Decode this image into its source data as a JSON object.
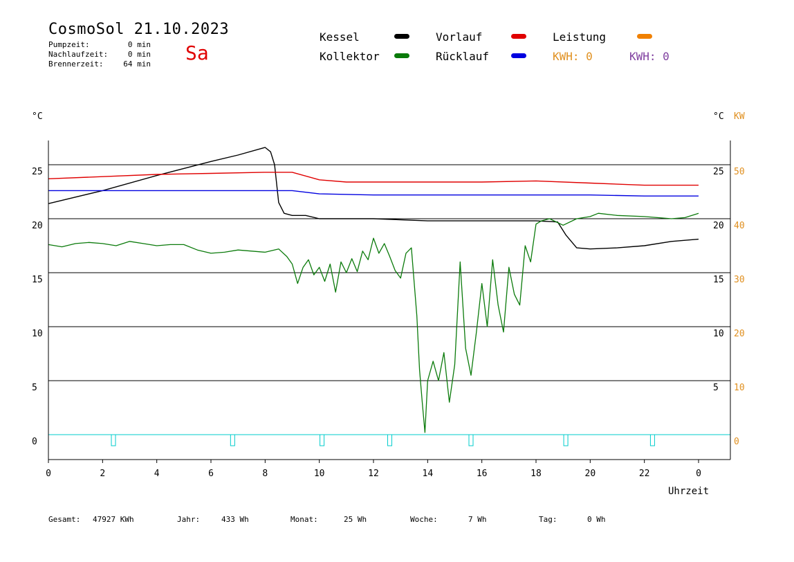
{
  "header": {
    "title": "CosmoSol 21.10.2023",
    "weekday": "Sa",
    "stats": [
      {
        "label": "Pumpzeit:",
        "value": "0 min"
      },
      {
        "label": "Nachlaufzeit:",
        "value": "0 min"
      },
      {
        "label": "Brennerzeit:",
        "value": "64 min"
      }
    ]
  },
  "legend": {
    "kessel": {
      "label": "Kessel",
      "color": "#000000"
    },
    "kollektor": {
      "label": "Kollektor",
      "color": "#0a7a0a"
    },
    "vorlauf": {
      "label": "Vorlauf",
      "color": "#e00000"
    },
    "ruecklauf": {
      "label": "Rücklauf",
      "color": "#0000e0"
    },
    "leistung": {
      "label": "Leistung",
      "color": "#f08000"
    },
    "kwh_orange": "KWH: 0",
    "kwh_purple": "KWH: 0",
    "kwh_orange_color": "#e09020",
    "kwh_purple_color": "#8040a0"
  },
  "axes": {
    "left_unit": "°C",
    "right_unit": "°C",
    "right_unit2": "KW",
    "x_label": "Uhrzeit"
  },
  "footer": [
    {
      "label": "Gesamt:",
      "value": "47927 KWh"
    },
    {
      "label": "Jahr:",
      "value": "433 Wh"
    },
    {
      "label": "Monat:",
      "value": "25 Wh"
    },
    {
      "label": "Woche:",
      "value": "7 Wh"
    },
    {
      "label": "Tag:",
      "value": "0 Wh"
    }
  ],
  "chart_data": {
    "type": "line",
    "x_ticks": [
      "0",
      "2",
      "4",
      "6",
      "8",
      "10",
      "12",
      "14",
      "16",
      "18",
      "20",
      "22",
      "0"
    ],
    "xlim": [
      0,
      24
    ],
    "left_ticks": [
      "0",
      "5",
      "10",
      "15",
      "20",
      "25"
    ],
    "right_ticks_black": [
      "5",
      "10",
      "15",
      "20",
      "25"
    ],
    "right_ticks_orange": [
      "0",
      "10",
      "20",
      "30",
      "40",
      "50"
    ],
    "ylim": [
      -2,
      27
    ],
    "grid": true,
    "series": [
      {
        "name": "Kessel",
        "color": "#000000",
        "points": [
          [
            0,
            21.4
          ],
          [
            2,
            22.6
          ],
          [
            4,
            24.0
          ],
          [
            6,
            25.3
          ],
          [
            7,
            25.9
          ],
          [
            8,
            26.6
          ],
          [
            8.2,
            26.2
          ],
          [
            8.35,
            25.0
          ],
          [
            8.5,
            21.5
          ],
          [
            8.7,
            20.5
          ],
          [
            9,
            20.3
          ],
          [
            9.5,
            20.3
          ],
          [
            10,
            20.0
          ],
          [
            12,
            20.0
          ],
          [
            14,
            19.8
          ],
          [
            16,
            19.8
          ],
          [
            18,
            19.8
          ],
          [
            18.8,
            19.7
          ],
          [
            19.1,
            18.5
          ],
          [
            19.5,
            17.3
          ],
          [
            20,
            17.2
          ],
          [
            21,
            17.3
          ],
          [
            22,
            17.5
          ],
          [
            23,
            17.9
          ],
          [
            24,
            18.1
          ]
        ]
      },
      {
        "name": "Vorlauf",
        "color": "#e00000",
        "points": [
          [
            0,
            23.7
          ],
          [
            2,
            23.9
          ],
          [
            4,
            24.1
          ],
          [
            6,
            24.2
          ],
          [
            8,
            24.3
          ],
          [
            9,
            24.3
          ],
          [
            10,
            23.6
          ],
          [
            11,
            23.4
          ],
          [
            14,
            23.4
          ],
          [
            16,
            23.4
          ],
          [
            18,
            23.5
          ],
          [
            20,
            23.3
          ],
          [
            22,
            23.1
          ],
          [
            24,
            23.1
          ]
        ]
      },
      {
        "name": "Rücklauf",
        "color": "#0000e0",
        "points": [
          [
            0,
            22.6
          ],
          [
            4,
            22.6
          ],
          [
            8,
            22.6
          ],
          [
            9,
            22.6
          ],
          [
            10,
            22.3
          ],
          [
            12,
            22.2
          ],
          [
            14,
            22.2
          ],
          [
            16,
            22.2
          ],
          [
            18,
            22.2
          ],
          [
            20,
            22.2
          ],
          [
            22,
            22.1
          ],
          [
            24,
            22.1
          ]
        ]
      },
      {
        "name": "Kollektor",
        "color": "#0a7a0a",
        "points": [
          [
            0,
            17.6
          ],
          [
            0.5,
            17.4
          ],
          [
            1,
            17.7
          ],
          [
            1.5,
            17.8
          ],
          [
            2,
            17.7
          ],
          [
            2.5,
            17.5
          ],
          [
            3,
            17.9
          ],
          [
            3.5,
            17.7
          ],
          [
            4,
            17.5
          ],
          [
            4.5,
            17.6
          ],
          [
            5,
            17.6
          ],
          [
            5.5,
            17.1
          ],
          [
            6,
            16.8
          ],
          [
            6.5,
            16.9
          ],
          [
            7,
            17.1
          ],
          [
            7.5,
            17.0
          ],
          [
            8,
            16.9
          ],
          [
            8.5,
            17.2
          ],
          [
            8.8,
            16.5
          ],
          [
            9,
            15.8
          ],
          [
            9.2,
            14.0
          ],
          [
            9.4,
            15.5
          ],
          [
            9.6,
            16.2
          ],
          [
            9.8,
            14.8
          ],
          [
            10,
            15.5
          ],
          [
            10.2,
            14.2
          ],
          [
            10.4,
            15.8
          ],
          [
            10.6,
            13.2
          ],
          [
            10.8,
            16.0
          ],
          [
            11,
            15.0
          ],
          [
            11.2,
            16.3
          ],
          [
            11.4,
            15.1
          ],
          [
            11.6,
            17.0
          ],
          [
            11.8,
            16.2
          ],
          [
            12,
            18.2
          ],
          [
            12.2,
            16.8
          ],
          [
            12.4,
            17.7
          ],
          [
            12.6,
            16.5
          ],
          [
            12.8,
            15.2
          ],
          [
            13,
            14.5
          ],
          [
            13.2,
            16.8
          ],
          [
            13.4,
            17.3
          ],
          [
            13.6,
            11.0
          ],
          [
            13.7,
            6.0
          ],
          [
            13.8,
            3.0
          ],
          [
            13.9,
            0.2
          ],
          [
            14,
            5.0
          ],
          [
            14.2,
            6.8
          ],
          [
            14.4,
            5.0
          ],
          [
            14.6,
            7.6
          ],
          [
            14.8,
            3.0
          ],
          [
            15,
            6.5
          ],
          [
            15.2,
            16.0
          ],
          [
            15.4,
            8.0
          ],
          [
            15.6,
            5.5
          ],
          [
            15.8,
            9.5
          ],
          [
            16,
            14.0
          ],
          [
            16.2,
            10.0
          ],
          [
            16.4,
            16.2
          ],
          [
            16.6,
            12.0
          ],
          [
            16.8,
            9.5
          ],
          [
            17,
            15.5
          ],
          [
            17.2,
            13.0
          ],
          [
            17.4,
            12.0
          ],
          [
            17.6,
            17.5
          ],
          [
            17.8,
            16.0
          ],
          [
            18,
            19.5
          ],
          [
            18.2,
            19.8
          ],
          [
            18.5,
            20.0
          ],
          [
            19,
            19.4
          ],
          [
            19.5,
            20.0
          ],
          [
            20,
            20.2
          ],
          [
            20.3,
            20.5
          ],
          [
            21,
            20.3
          ],
          [
            22,
            20.2
          ],
          [
            23,
            20.0
          ],
          [
            23.5,
            20.1
          ],
          [
            24,
            20.5
          ]
        ]
      }
    ],
    "markers": {
      "name": "Pumpe",
      "color": "#00cccc",
      "hours": [
        2.4,
        6.8,
        10.1,
        12.6,
        15.6,
        19.1,
        22.3
      ]
    }
  }
}
